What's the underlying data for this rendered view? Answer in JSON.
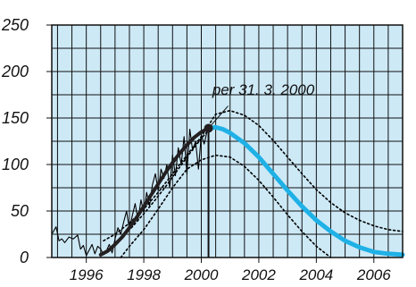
{
  "chart_data": {
    "type": "line",
    "background_color": "#cde9f6",
    "grid": true,
    "x_range": [
      1994.8,
      2007.0
    ],
    "y_range": [
      0,
      250
    ],
    "x_ticks": [
      1996,
      1998,
      2000,
      2002,
      2004,
      2006
    ],
    "x_tick_labels": [
      "1996",
      "1998",
      "2000",
      "2002",
      "2004",
      "2006"
    ],
    "y_ticks": [
      0,
      50,
      100,
      150,
      200,
      250
    ],
    "y_tick_labels": [
      "0",
      "50",
      "100",
      "150",
      "200",
      "250"
    ],
    "annotation": {
      "text": "per 31. 3. 2000",
      "point": {
        "x": 2000.25,
        "y": 139
      }
    },
    "series": [
      {
        "style": "thin-black",
        "color": "#000000",
        "x": [
          1994.8,
          1994.95,
          1995.05,
          1995.15,
          1995.25,
          1995.4,
          1995.55,
          1995.7,
          1995.8,
          1995.9,
          1996.0,
          1996.1,
          1996.2,
          1996.3,
          1996.4,
          1996.5,
          1996.6,
          1996.7,
          1996.8,
          1996.9,
          1997.0,
          1997.1,
          1997.2,
          1997.3,
          1997.4,
          1997.5,
          1997.6,
          1997.7,
          1997.8,
          1997.9,
          1998.0,
          1998.1,
          1998.2,
          1998.3,
          1998.4,
          1998.5,
          1998.6,
          1998.7,
          1998.8,
          1998.9,
          1999.0,
          1999.1,
          1999.2,
          1999.3,
          1999.4,
          1999.5,
          1999.6,
          1999.7,
          1999.8,
          1999.9,
          2000.0,
          2000.1,
          2000.2
        ],
        "y": [
          25,
          33,
          18,
          20,
          16,
          22,
          20,
          24,
          9,
          13,
          2,
          8,
          14,
          4,
          12,
          9,
          3,
          7,
          14,
          5,
          20,
          32,
          25,
          38,
          50,
          30,
          45,
          58,
          40,
          62,
          48,
          70,
          55,
          78,
          90,
          72,
          95,
          85,
          100,
          75,
          110,
          88,
          118,
          100,
          130,
          90,
          138,
          115,
          125,
          95,
          132,
          122,
          136
        ]
      },
      {
        "style": "bold-black",
        "color": "#231f20",
        "x": [
          1996.5,
          1996.75,
          1997.0,
          1997.25,
          1997.5,
          1997.75,
          1998.0,
          1998.25,
          1998.5,
          1998.75,
          1999.0,
          1999.25,
          1999.5,
          1999.75,
          2000.0,
          2000.25
        ],
        "y": [
          3,
          7,
          14,
          22,
          32,
          43,
          55,
          67,
          79,
          91,
          102,
          112,
          121,
          129,
          135,
          139
        ]
      },
      {
        "style": "bold-blue",
        "color": "#1fb1e6",
        "x": [
          2000.25,
          2000.5,
          2000.75,
          2001.0,
          2001.5,
          2002.0,
          2002.5,
          2003.0,
          2003.5,
          2004.0,
          2004.5,
          2005.0,
          2005.5,
          2006.0,
          2006.5,
          2007.0
        ],
        "y": [
          139,
          140,
          138,
          134,
          123,
          108,
          90,
          72,
          55,
          40,
          28,
          18,
          11,
          6,
          4,
          3
        ]
      },
      {
        "style": "dotted-upper",
        "color": "#000000",
        "x": [
          1996.6,
          1997.0,
          1997.5,
          1998.0,
          1998.5,
          1999.0,
          1999.5,
          2000.0,
          2000.5,
          2001.0,
          2001.5,
          2002.0,
          2002.5,
          2003.0,
          2003.5,
          2004.0,
          2004.5,
          2005.0,
          2005.5,
          2006.0,
          2006.5,
          2007.0
        ],
        "y": [
          18,
          25,
          37,
          52,
          70,
          90,
          110,
          130,
          154,
          158,
          153,
          142,
          126,
          108,
          90,
          73,
          59,
          48,
          40,
          34,
          30,
          28
        ]
      },
      {
        "style": "dotted-lower",
        "color": "#000000",
        "x": [
          1997.2,
          1997.5,
          1998.0,
          1998.5,
          1999.0,
          1999.5,
          2000.0,
          2000.5,
          2001.0,
          2001.5,
          2002.0,
          2002.5,
          2003.0,
          2003.5,
          2004.0,
          2004.5
        ],
        "y": [
          0,
          12,
          30,
          52,
          75,
          95,
          105,
          110,
          108,
          98,
          83,
          65,
          46,
          28,
          12,
          0
        ]
      },
      {
        "style": "dotted-inner",
        "color": "#000000",
        "x": [
          1996.8,
          1997.2,
          1997.6,
          1998.0,
          1998.4,
          1998.8,
          1999.2,
          1999.6,
          2000.0,
          2000.2
        ],
        "y": [
          8,
          20,
          33,
          47,
          62,
          78,
          95,
          112,
          128,
          135
        ]
      }
    ]
  }
}
